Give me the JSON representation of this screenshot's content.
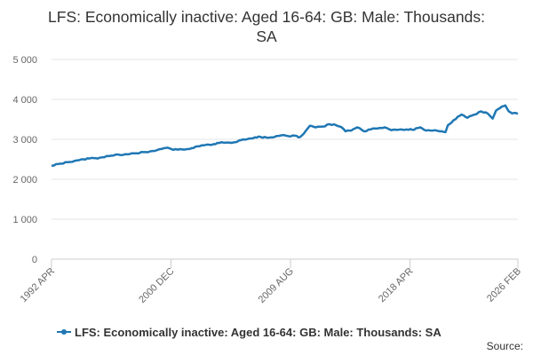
{
  "chart_data": {
    "type": "line",
    "title": "LFS: Economically inactive: Aged 16-64: GB: Male: Thousands: SA",
    "xlabel": "",
    "ylabel": "",
    "ylim": [
      0,
      5000
    ],
    "xlim": [
      "1992 APR",
      "2026 FEB"
    ],
    "y_ticks": [
      0,
      1000,
      2000,
      3000,
      4000,
      5000
    ],
    "y_tick_labels": [
      "0",
      "1 000",
      "2 000",
      "3 000",
      "4 000",
      "5 000"
    ],
    "x_tick_labels": [
      "1992 APR",
      "2000 DEC",
      "2009 AUG",
      "2018 APR",
      "2026 FEB"
    ],
    "grid": "horizontal",
    "legend_position": "bottom",
    "series_color": "#1f77b4",
    "series": [
      {
        "name": "LFS: Economically inactive: Aged 16-64: GB: Male: Thousands: SA",
        "points": [
          [
            "1992 APR",
            2340
          ],
          [
            "1992 DEC",
            2390
          ],
          [
            "1993 JUN",
            2430
          ],
          [
            "1993 DEC",
            2460
          ],
          [
            "1994 JUN",
            2500
          ],
          [
            "1995 JAN",
            2520
          ],
          [
            "1995 OCT",
            2540
          ],
          [
            "1996 JUN",
            2580
          ],
          [
            "1996 DEC",
            2620
          ],
          [
            "1997 JUN",
            2610
          ],
          [
            "1997 DEC",
            2630
          ],
          [
            "1998 JUN",
            2650
          ],
          [
            "1998 DEC",
            2680
          ],
          [
            "1999 JUN",
            2700
          ],
          [
            "1999 DEC",
            2730
          ],
          [
            "2000 JUN",
            2780
          ],
          [
            "2000 SEP",
            2790
          ],
          [
            "2000 DEC",
            2760
          ],
          [
            "2001 JUN",
            2740
          ],
          [
            "2002 JAN",
            2750
          ],
          [
            "2002 JUN",
            2780
          ],
          [
            "2003 JAN",
            2830
          ],
          [
            "2003 JUN",
            2860
          ],
          [
            "2004 JAN",
            2880
          ],
          [
            "2004 JUN",
            2910
          ],
          [
            "2005 JAN",
            2920
          ],
          [
            "2005 JUN",
            2920
          ],
          [
            "2006 JAN",
            2980
          ],
          [
            "2006 JUN",
            3000
          ],
          [
            "2007 JAN",
            3050
          ],
          [
            "2007 JUN",
            3060
          ],
          [
            "2008 JAN",
            3040
          ],
          [
            "2008 JUN",
            3060
          ],
          [
            "2008 DEC",
            3100
          ],
          [
            "2009 JUN",
            3080
          ],
          [
            "2009 DEC",
            3090
          ],
          [
            "2010 MAR",
            3050
          ],
          [
            "2010 JUN",
            3100
          ],
          [
            "2010 SEP",
            3200
          ],
          [
            "2011 JAN",
            3340
          ],
          [
            "2011 JUN",
            3300
          ],
          [
            "2011 DEC",
            3320
          ],
          [
            "2012 JUN",
            3380
          ],
          [
            "2012 DEC",
            3350
          ],
          [
            "2013 APR",
            3310
          ],
          [
            "2013 AUG",
            3200
          ],
          [
            "2014 JAN",
            3220
          ],
          [
            "2014 JUN",
            3300
          ],
          [
            "2014 DEC",
            3200
          ],
          [
            "2015 JUN",
            3250
          ],
          [
            "2016 JAN",
            3280
          ],
          [
            "2016 JUN",
            3300
          ],
          [
            "2016 DEC",
            3230
          ],
          [
            "2017 JUN",
            3240
          ],
          [
            "2018 JAN",
            3250
          ],
          [
            "2018 JUN",
            3240
          ],
          [
            "2019 JAN",
            3300
          ],
          [
            "2019 JUN",
            3220
          ],
          [
            "2019 DEC",
            3220
          ],
          [
            "2020 JUN",
            3200
          ],
          [
            "2020 NOV",
            3180
          ],
          [
            "2021 JAN",
            3350
          ],
          [
            "2021 JUN",
            3480
          ],
          [
            "2022 JAN",
            3620
          ],
          [
            "2022 JUN",
            3540
          ],
          [
            "2022 DEC",
            3620
          ],
          [
            "2023 JUN",
            3700
          ],
          [
            "2023 DEC",
            3640
          ],
          [
            "2024 APR",
            3520
          ],
          [
            "2024 JUL",
            3720
          ],
          [
            "2024 DEC",
            3820
          ],
          [
            "2025 MAR",
            3850
          ],
          [
            "2025 JUN",
            3700
          ],
          [
            "2025 SEP",
            3650
          ],
          [
            "2025 DEC",
            3660
          ],
          [
            "2026 FEB",
            3640
          ]
        ]
      }
    ],
    "source_label": "Source:"
  }
}
